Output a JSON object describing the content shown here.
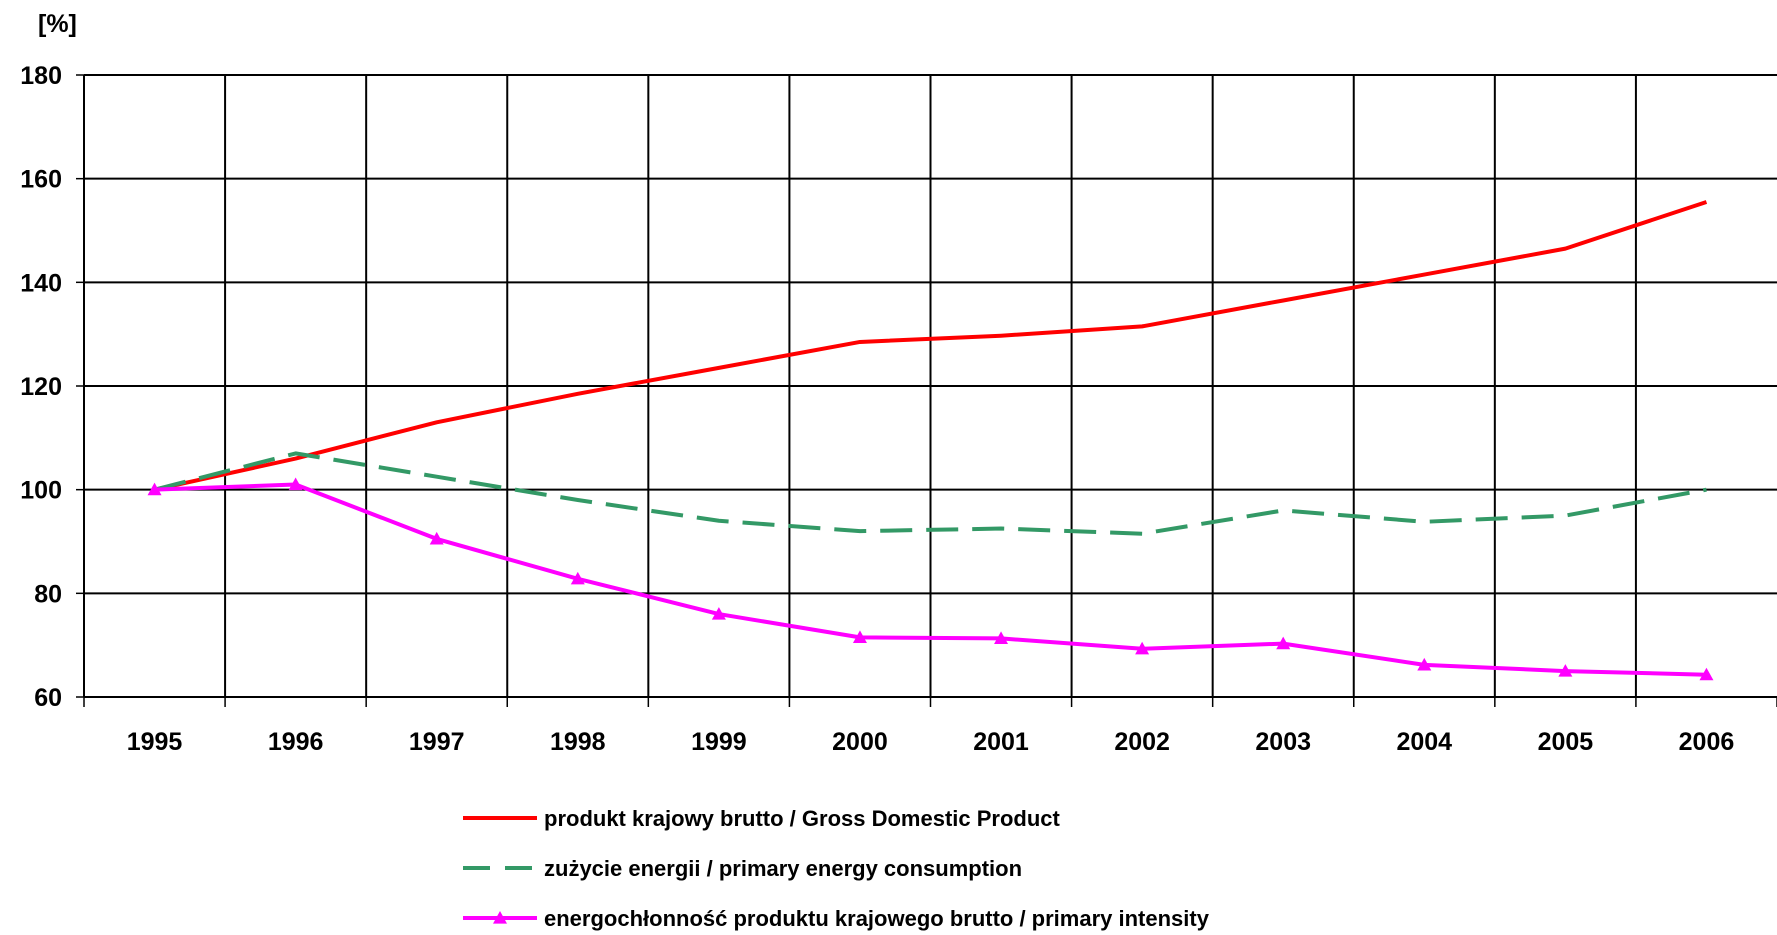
{
  "chart_data": {
    "type": "line",
    "unit_label": "[%]",
    "x": [
      "1995",
      "1996",
      "1997",
      "1998",
      "1999",
      "2000",
      "2001",
      "2002",
      "2003",
      "2004",
      "2005",
      "2006"
    ],
    "ylim": [
      60,
      180
    ],
    "yticks": [
      60,
      80,
      100,
      120,
      140,
      160,
      180
    ],
    "grid": true,
    "legend_position": "bottom",
    "series": [
      {
        "name": "produkt krajowy brutto / Gross Domestic Product",
        "color": "#ff0000",
        "style": "solid",
        "values": [
          100,
          106,
          113,
          118.5,
          123.5,
          128.5,
          129.7,
          131.5,
          136.5,
          141.5,
          146.5,
          155.5
        ]
      },
      {
        "name": "zużycie energii / primary energy consumption",
        "color": "#339966",
        "style": "dashed",
        "values": [
          100,
          107,
          102.5,
          98,
          94,
          92,
          92.5,
          91.5,
          96,
          93.8,
          95,
          100
        ]
      },
      {
        "name": "energochłonność produktu krajowego brutto / primary intensity",
        "color": "#ff00ff",
        "style": "solid-triangle-markers",
        "values": [
          100,
          101,
          90.5,
          82.8,
          76,
          71.5,
          71.3,
          69.3,
          70.3,
          66.2,
          65,
          64.3
        ]
      }
    ]
  }
}
